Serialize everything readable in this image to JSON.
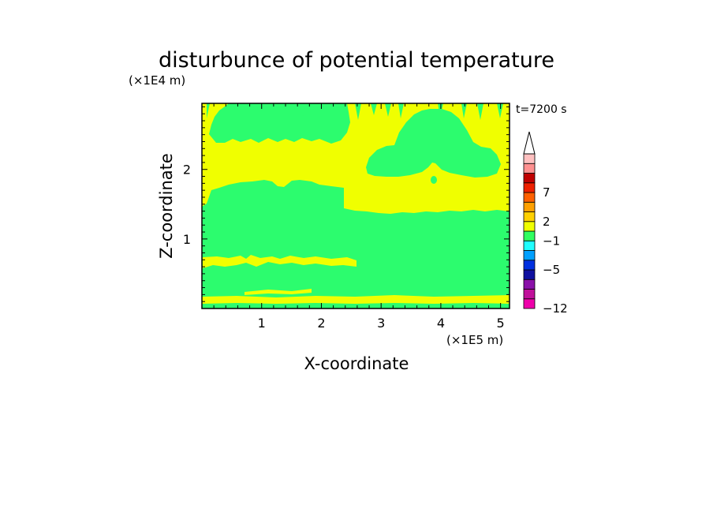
{
  "chart_data": {
    "type": "heatmap",
    "title": "disturbunce of potential temperature",
    "time_label": "t=7200 s",
    "xlabel": "X-coordinate",
    "ylabel": "Z-coordinate",
    "x_scale_label": "(×1E5 m)",
    "y_scale_label": "(×1E4 m)",
    "xlim": [
      0,
      5.15
    ],
    "ylim": [
      0,
      2.95
    ],
    "x_ticks": [
      1,
      2,
      3,
      4,
      5
    ],
    "y_ticks": [
      1,
      2
    ],
    "colorbar": {
      "colors": [
        "#ee00aa",
        "#c0109a",
        "#8a10a8",
        "#1010a0",
        "#0030e0",
        "#00a0ff",
        "#20ffff",
        "#30ff60",
        "#f0ff00",
        "#ffd000",
        "#ffa000",
        "#ff6000",
        "#ee2000",
        "#c00000",
        "#ff9090",
        "#ffc0c0"
      ],
      "tick_labels": [
        "-12",
        "-5",
        "-1",
        "2",
        "7"
      ],
      "tick_levels": [
        0,
        4,
        7,
        9,
        12
      ],
      "extend_top": true
    },
    "colors": {
      "green": "#2cfc6e",
      "yellow": "#f0ff00"
    },
    "regions": {
      "base_fill": "green",
      "upper_yellow": "yellow",
      "lower_band": {
        "z_range": [
          0.65,
          0.75
        ],
        "x_range": [
          0,
          2.6
        ],
        "color": "yellow"
      },
      "surface_band": {
        "z_range": [
          0.1,
          0.18
        ],
        "x_range": [
          0,
          5.15
        ],
        "color": "yellow"
      }
    }
  }
}
